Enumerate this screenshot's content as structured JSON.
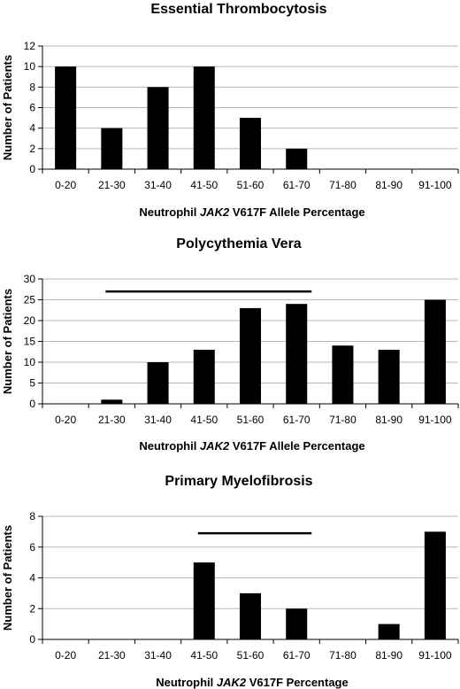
{
  "chart_data": [
    {
      "type": "bar",
      "title": "Essential Thrombocytosis",
      "xlabel_parts": [
        "Neutrophil ",
        "JAK2",
        " V617F Allele Percentage"
      ],
      "ylabel": "Number of Patients",
      "categories": [
        "0-20",
        "21-30",
        "31-40",
        "41-50",
        "51-60",
        "61-70",
        "71-80",
        "81-90",
        "91-100"
      ],
      "values": [
        10,
        4,
        8,
        10,
        5,
        2,
        0,
        0,
        0
      ],
      "ylim": [
        0,
        12
      ],
      "yticks": [
        0,
        2,
        4,
        6,
        8,
        10,
        12
      ],
      "grid": true,
      "line": null
    },
    {
      "type": "bar",
      "title": "Polycythemia Vera",
      "xlabel_parts": [
        "Neutrophil ",
        "JAK2",
        " V617F Allele Percentage"
      ],
      "ylabel": "Number of Patients",
      "categories": [
        "0-20",
        "21-30",
        "31-40",
        "41-50",
        "51-60",
        "61-70",
        "71-80",
        "81-90",
        "91-100"
      ],
      "values": [
        0,
        1,
        10,
        13,
        23,
        24,
        14,
        13,
        25
      ],
      "ylim": [
        0,
        30
      ],
      "yticks": [
        0,
        5,
        10,
        15,
        20,
        25,
        30
      ],
      "grid": true,
      "line": {
        "from_category": "21-30",
        "to_category": "61-70",
        "y": 27
      }
    },
    {
      "type": "bar",
      "title": "Primary Myelofibrosis",
      "xlabel_parts": [
        "Neutrophil ",
        "JAK2",
        " V617F Percentage"
      ],
      "ylabel": "Number of Patients",
      "categories": [
        "0-20",
        "21-30",
        "31-40",
        "41-50",
        "51-60",
        "61-70",
        "71-80",
        "81-90",
        "91-100"
      ],
      "values": [
        0,
        0,
        0,
        5,
        3,
        2,
        0,
        1,
        7
      ],
      "ylim": [
        0,
        8
      ],
      "yticks": [
        0,
        2,
        4,
        6,
        8
      ],
      "grid": true,
      "line": {
        "from_category": "41-50",
        "to_category": "61-70",
        "y": 6.9
      }
    }
  ]
}
